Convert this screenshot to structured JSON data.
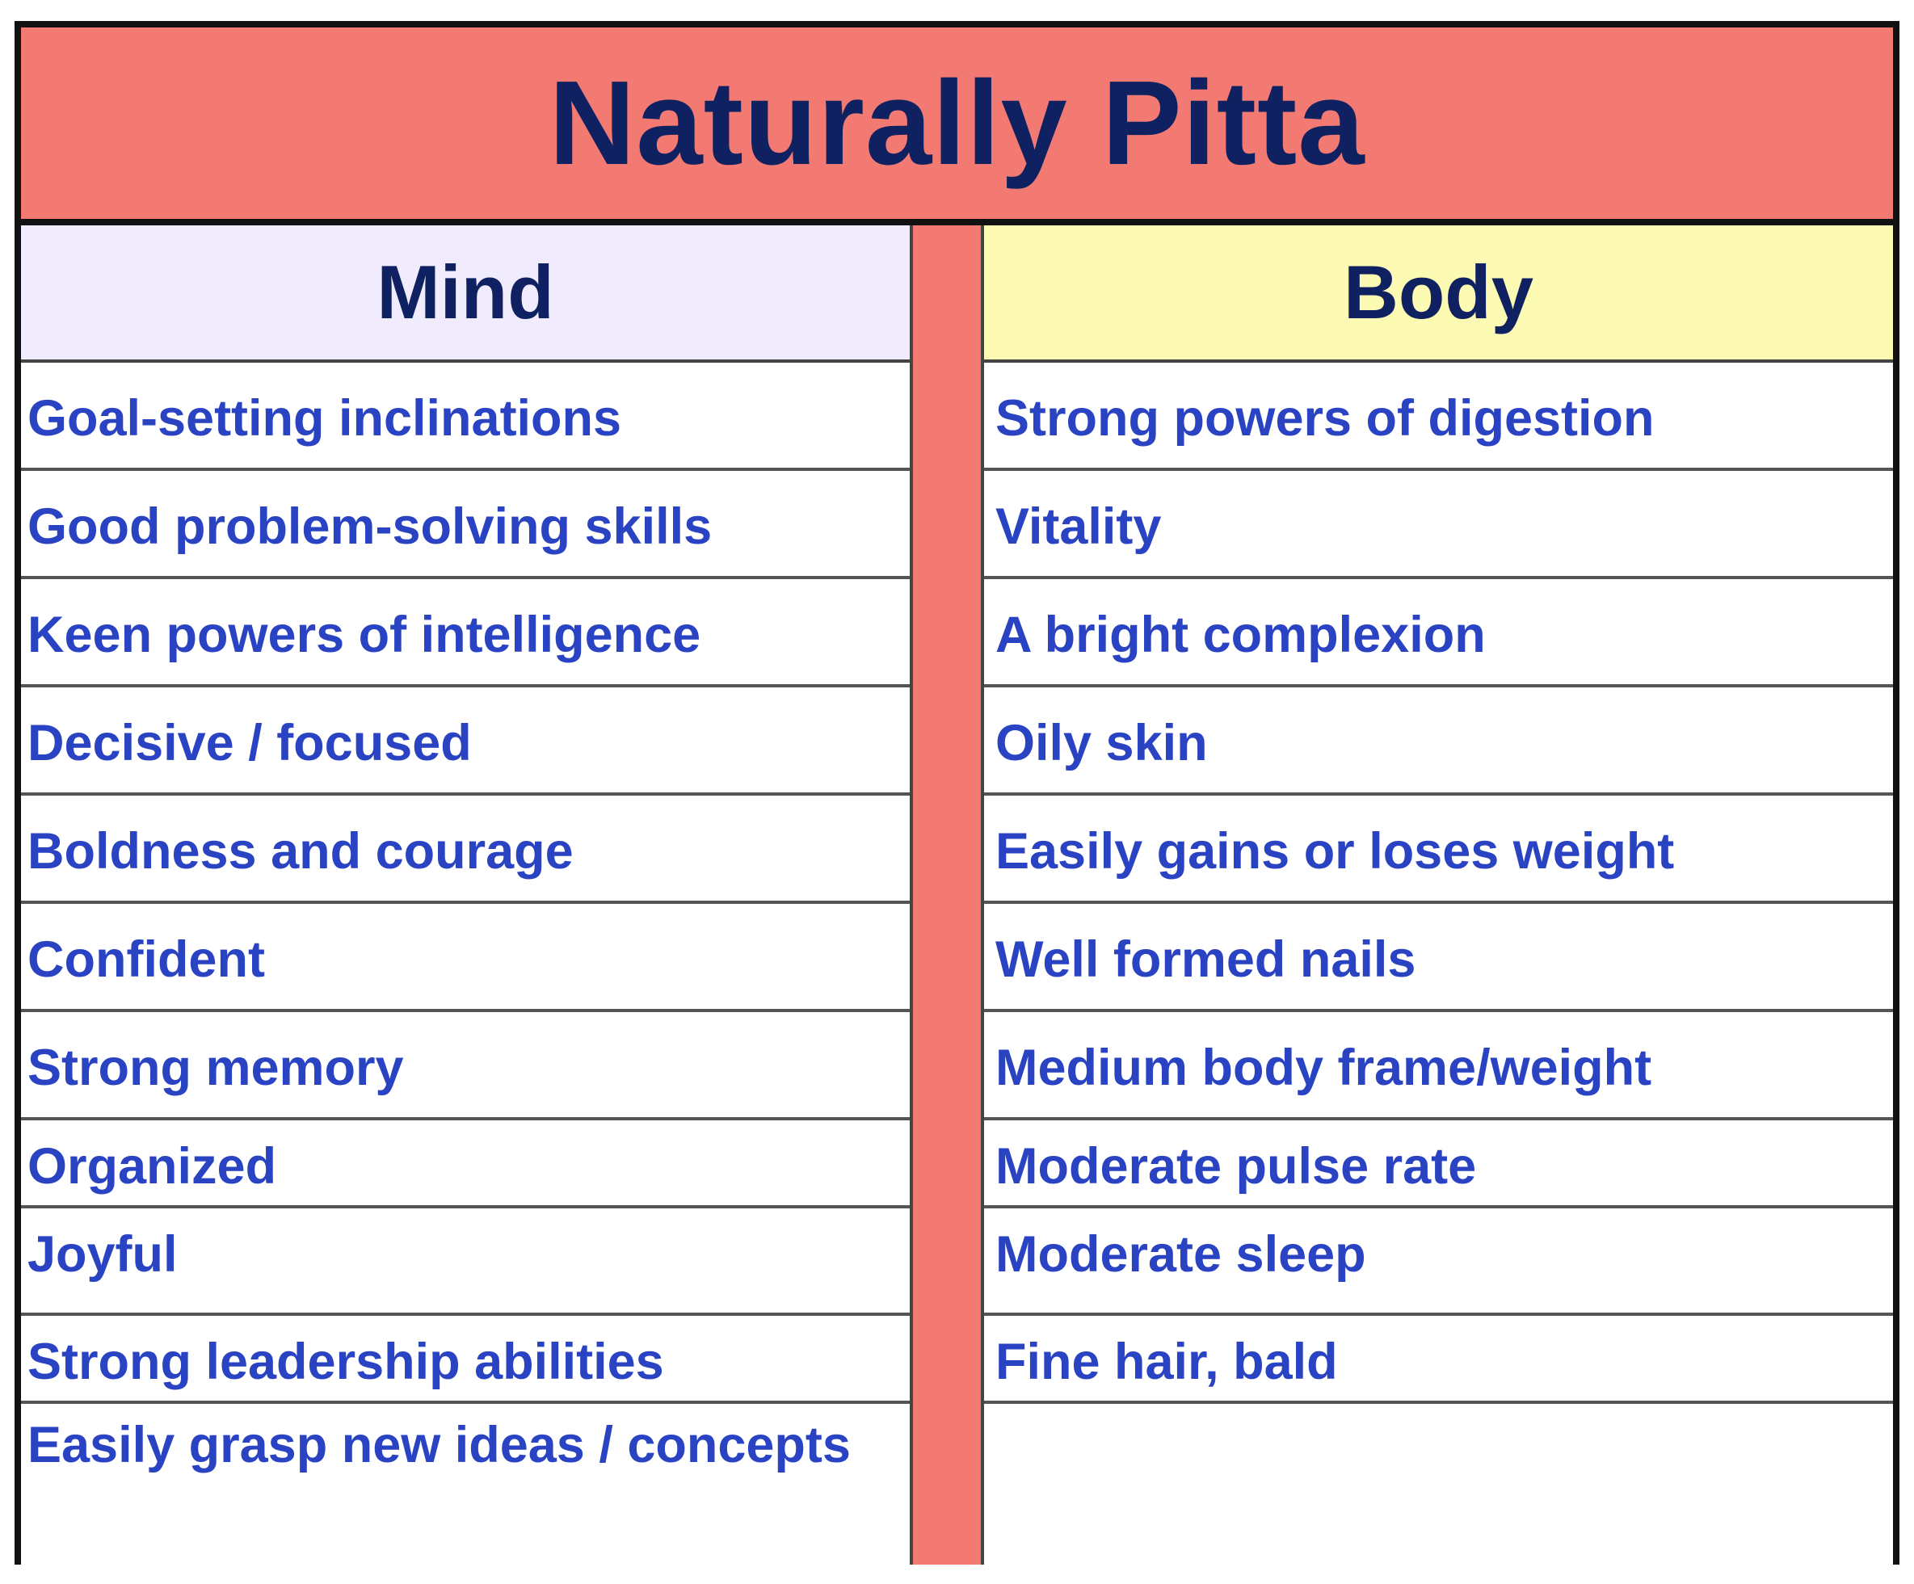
{
  "title": "Naturally Pitta",
  "columns": {
    "mind": {
      "header": "Mind",
      "items": [
        "Goal-setting inclinations",
        "Good problem-solving skills",
        "Keen powers of intelligence",
        "Decisive / focused",
        "Boldness and courage",
        "Confident",
        "Strong memory",
        "Organized",
        "Joyful",
        "Strong leadership abilities",
        "Easily grasp new ideas / concepts"
      ]
    },
    "body": {
      "header": "Body",
      "items": [
        "Strong powers of digestion",
        "Vitality",
        "A bright complexion",
        "Oily skin",
        "Easily gains or loses weight",
        "Well formed nails",
        "Medium body frame/weight",
        "Moderate pulse rate",
        "Moderate sleep",
        "Fine hair, bald",
        ""
      ]
    }
  },
  "colors": {
    "title_bg": "#f27a72",
    "title_text": "#0f2160",
    "mind_header_bg": "#f1ecfd",
    "body_header_bg": "#fdfbb3",
    "item_text": "#2a43c2",
    "border": "#111111"
  }
}
